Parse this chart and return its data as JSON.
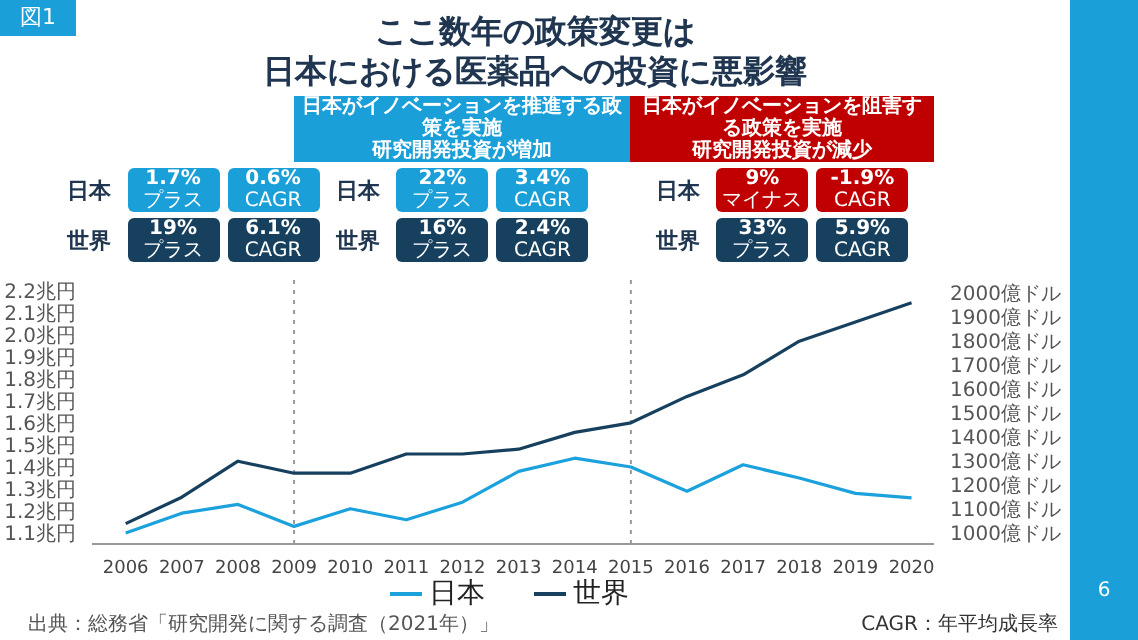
{
  "chart_data": {
    "type": "line",
    "title": "ここ数年の政策変更は",
    "subtitle": "日本における医薬品への投資に悪影響",
    "x": [
      2006,
      2007,
      2008,
      2009,
      2010,
      2011,
      2012,
      2013,
      2014,
      2015,
      2016,
      2017,
      2018,
      2019,
      2020
    ],
    "xlim": [
      2005.4,
      2020.4
    ],
    "xticks": [
      2006,
      2007,
      2008,
      2009,
      2010,
      2011,
      2012,
      2013,
      2014,
      2015,
      2016,
      2017,
      2018,
      2019,
      2020
    ],
    "ylim": [
      1.05,
      2.25
    ],
    "yticks": [
      {
        "value": 1.1,
        "label": "1.1兆円"
      },
      {
        "value": 1.2,
        "label": "1.2兆円"
      },
      {
        "value": 1.3,
        "label": "1.3兆円"
      },
      {
        "value": 1.4,
        "label": "1.4兆円"
      },
      {
        "value": 1.5,
        "label": "1.5兆円"
      },
      {
        "value": 1.6,
        "label": "1.6兆円"
      },
      {
        "value": 1.7,
        "label": "1.7兆円"
      },
      {
        "value": 1.8,
        "label": "1.8兆円"
      },
      {
        "value": 1.9,
        "label": "1.9兆円"
      },
      {
        "value": 2.0,
        "label": "2.0兆円"
      },
      {
        "value": 2.1,
        "label": "2.1兆円"
      },
      {
        "value": 2.2,
        "label": "2.2兆円"
      }
    ],
    "y2lim": [
      955,
      2055
    ],
    "y2ticks": [
      {
        "value": 1000,
        "label": "1000億ドル"
      },
      {
        "value": 1100,
        "label": "1100億ドル"
      },
      {
        "value": 1200,
        "label": "1200億ドル"
      },
      {
        "value": 1300,
        "label": "1300億ドル"
      },
      {
        "value": 1400,
        "label": "1400億ドル"
      },
      {
        "value": 1500,
        "label": "1500億ドル"
      },
      {
        "value": 1600,
        "label": "1600億ドル"
      },
      {
        "value": 1700,
        "label": "1700億ドル"
      },
      {
        "value": 1800,
        "label": "1800億ドル"
      },
      {
        "value": 1900,
        "label": "1900億ドル"
      },
      {
        "value": 2000,
        "label": "2000億ドル"
      }
    ],
    "series": [
      {
        "name": "日本",
        "color": "#1ba1dc",
        "axis": "y",
        "values": [
          1.1,
          1.19,
          1.23,
          1.13,
          1.21,
          1.16,
          1.24,
          1.38,
          1.44,
          1.4,
          1.29,
          1.41,
          1.35,
          1.28,
          1.26
        ]
      },
      {
        "name": "世界",
        "color": "#17405e",
        "axis": "y2",
        "values": [
          1040,
          1150,
          1300,
          1250,
          1250,
          1330,
          1330,
          1350,
          1420,
          1460,
          1570,
          1660,
          1800,
          1880,
          1960
        ]
      }
    ],
    "ref_lines": [
      {
        "axis": "x",
        "value": 2009,
        "color": "#999999",
        "line_style": "dotted"
      },
      {
        "axis": "x",
        "value": 2015,
        "color": "#999999",
        "line_style": "dotted"
      }
    ],
    "legend": "bottom",
    "grid": false,
    "marker": "none",
    "line_style": "solid",
    "annotations": [
      "図1",
      "日本がイノベーションを推進する政策を実施",
      "研究開発投資が増加",
      "日本がイノベーションを阻害する政策を実施",
      "研究開発投資が減少",
      "日本",
      "1.7%",
      "プラス",
      "0.6%",
      "CAGR",
      "世界",
      "19%",
      "プラス",
      "6.1%",
      "CAGR",
      "日本",
      "22%",
      "プラス",
      "3.4%",
      "CAGR",
      "世界",
      "16%",
      "プラス",
      "2.4%",
      "CAGR",
      "日本",
      "9%",
      "マイナス",
      "-1.9%",
      "CAGR",
      "世界",
      "33%",
      "プラス",
      "5.9%",
      "CAGR",
      "出典：総務省「研究開発に関する調査（2021年）」",
      "CAGR：年平均成長率",
      "6"
    ]
  }
}
